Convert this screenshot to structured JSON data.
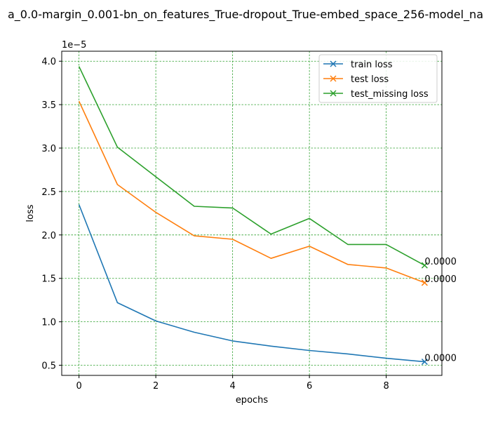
{
  "chart_data": {
    "type": "line",
    "title": "a_0.0-margin_0.001-bn_on_features_True-dropout_True-embed_space_256-model_na",
    "xlabel": "epochs",
    "ylabel": "loss",
    "offset_text": "1e−5",
    "x": [
      0,
      1,
      2,
      3,
      4,
      5,
      6,
      7,
      8,
      9
    ],
    "xlim": [
      -0.45,
      9.45
    ],
    "ylim": [
      3.83e-06,
      4.115e-05
    ],
    "xticks": [
      0,
      2,
      4,
      6,
      8
    ],
    "xtick_labels": [
      "0",
      "2",
      "4",
      "6",
      "8"
    ],
    "yticks": [
      5e-06,
      1e-05,
      1.5e-05,
      2e-05,
      2.5e-05,
      3e-05,
      3.5e-05,
      4e-05
    ],
    "ytick_labels": [
      "0.5",
      "1.0",
      "1.5",
      "2.0",
      "2.5",
      "3.0",
      "3.5",
      "4.0"
    ],
    "grid": true,
    "grid_color": "#2ca02c",
    "legend_position": "top-right",
    "series": [
      {
        "name": "train loss",
        "color": "#1f77b4",
        "values": [
          2.35e-05,
          1.22e-05,
          1.01e-05,
          8.8e-06,
          7.8e-06,
          7.2e-06,
          6.7e-06,
          6.3e-06,
          5.8e-06,
          5.4e-06
        ],
        "end_label": "0.0000"
      },
      {
        "name": "test loss",
        "color": "#ff7f0e",
        "values": [
          3.54e-05,
          2.58e-05,
          2.26e-05,
          1.99e-05,
          1.95e-05,
          1.73e-05,
          1.87e-05,
          1.66e-05,
          1.62e-05,
          1.45e-05
        ],
        "end_label": "0.0000"
      },
      {
        "name": "test_missing loss",
        "color": "#2ca02c",
        "values": [
          3.94e-05,
          3.01e-05,
          2.67e-05,
          2.33e-05,
          2.31e-05,
          2.01e-05,
          2.19e-05,
          1.89e-05,
          1.89e-05,
          1.65e-05
        ],
        "end_label": "0.0000"
      }
    ]
  }
}
